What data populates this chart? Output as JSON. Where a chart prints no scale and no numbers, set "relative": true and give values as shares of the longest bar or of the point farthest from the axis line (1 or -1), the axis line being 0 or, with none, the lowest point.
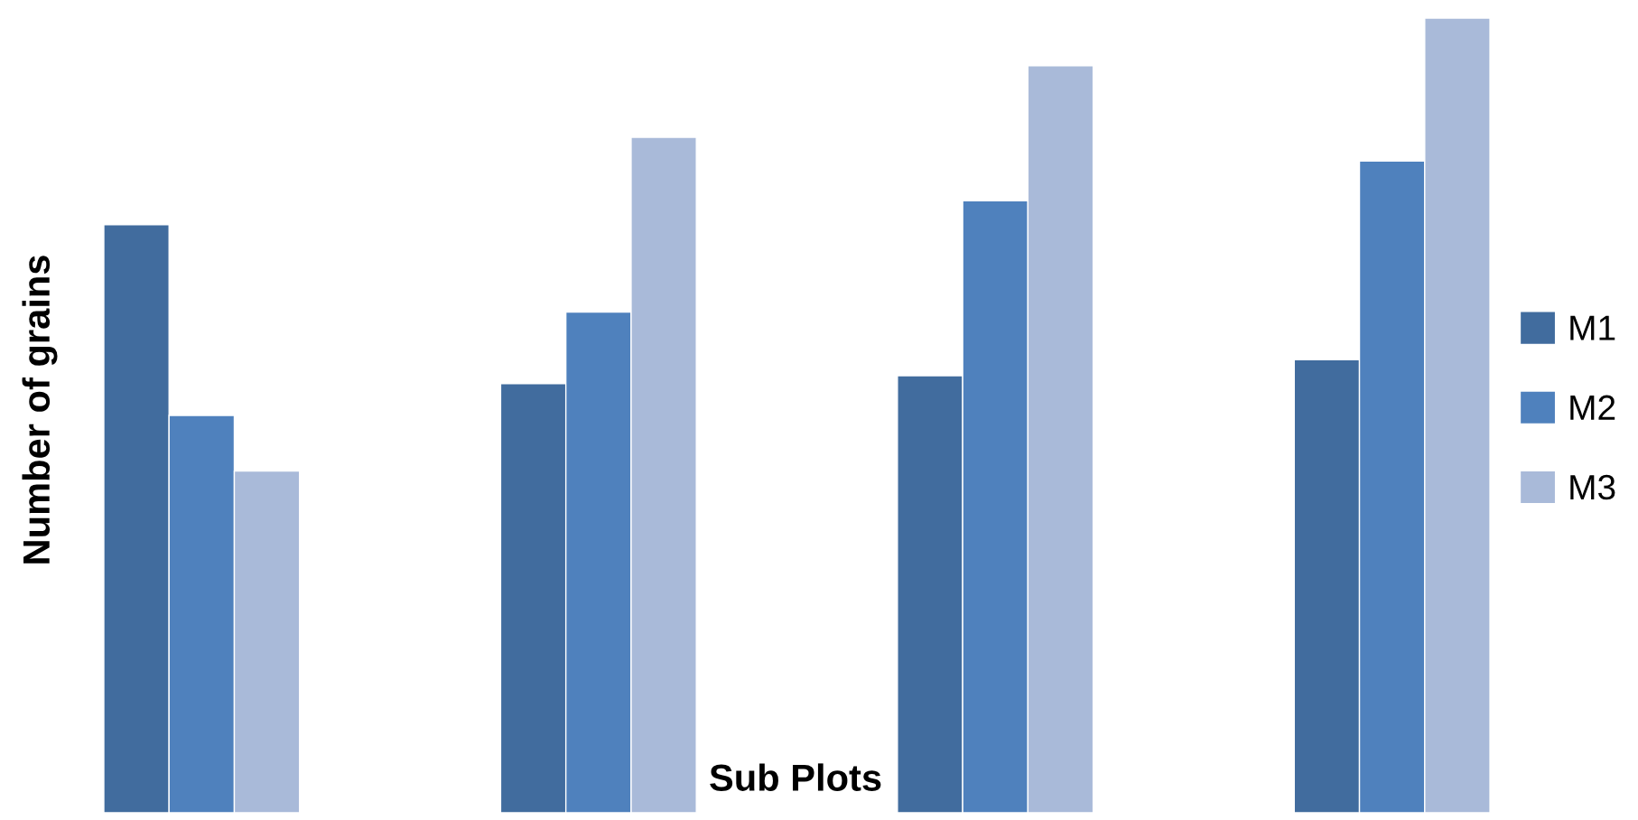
{
  "chart_data": {
    "type": "bar",
    "relative": true,
    "xlabel": "Sub Plots",
    "ylabel": "Number of grains",
    "categories": [
      null,
      null,
      null,
      null
    ],
    "legend": "right",
    "grid": false,
    "series": [
      {
        "name": "M1",
        "color": "#416c9e",
        "values": [
          0.74,
          0.54,
          0.55,
          0.57
        ]
      },
      {
        "name": "M2",
        "color": "#4f81bd",
        "values": [
          0.5,
          0.63,
          0.77,
          0.82
        ]
      },
      {
        "name": "M3",
        "color": "#a9bad9",
        "values": [
          0.43,
          0.85,
          0.94,
          1
        ]
      }
    ]
  }
}
